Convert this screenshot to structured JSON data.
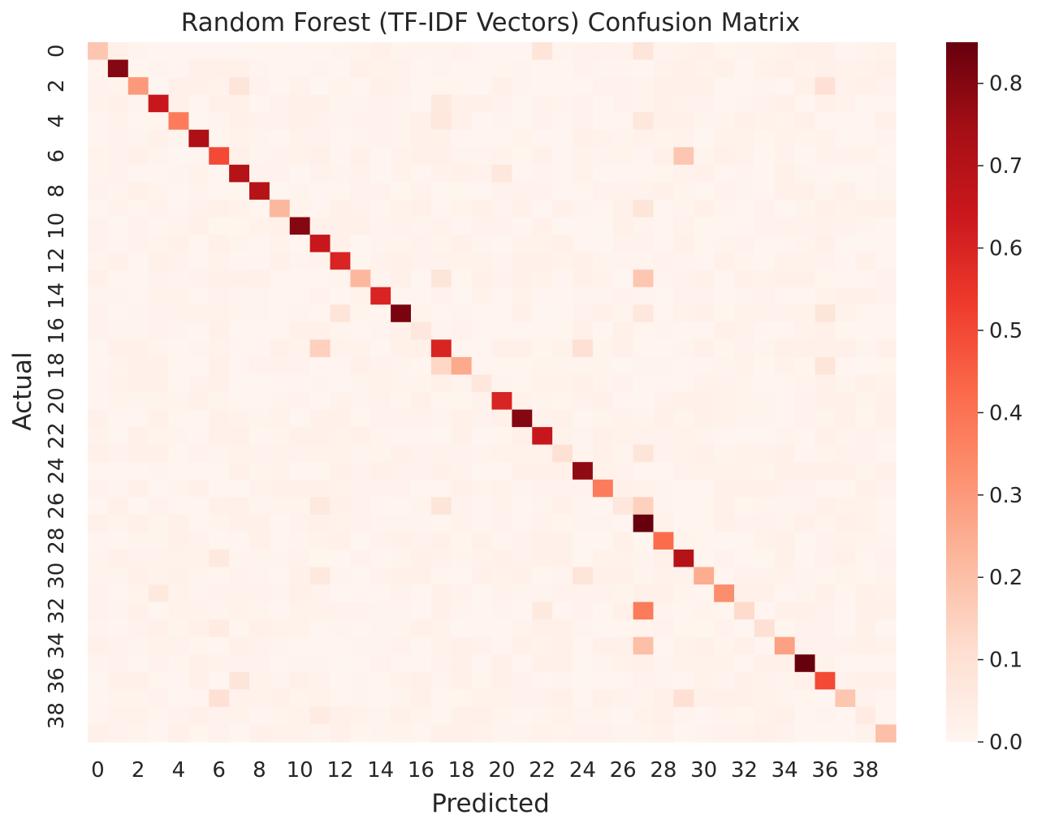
{
  "chart_data": {
    "type": "heatmap",
    "title": "Random Forest (TF-IDF Vectors) Confusion Matrix",
    "xlabel": "Predicted",
    "ylabel": "Actual",
    "n_classes": 40,
    "x_tick_labels": [
      "0",
      "2",
      "4",
      "6",
      "8",
      "10",
      "12",
      "14",
      "16",
      "18",
      "20",
      "22",
      "24",
      "26",
      "28",
      "30",
      "32",
      "34",
      "36",
      "38"
    ],
    "y_tick_labels": [
      "0",
      "2",
      "4",
      "6",
      "8",
      "10",
      "12",
      "14",
      "16",
      "18",
      "20",
      "22",
      "24",
      "26",
      "28",
      "30",
      "32",
      "34",
      "36",
      "38"
    ],
    "diagonal": [
      0.18,
      0.8,
      0.3,
      0.65,
      0.38,
      0.72,
      0.5,
      0.7,
      0.7,
      0.22,
      0.8,
      0.65,
      0.6,
      0.22,
      0.6,
      0.82,
      0.07,
      0.6,
      0.26,
      0.07,
      0.6,
      0.8,
      0.65,
      0.1,
      0.78,
      0.38,
      0.07,
      0.85,
      0.42,
      0.7,
      0.25,
      0.33,
      0.12,
      0.1,
      0.28,
      0.85,
      0.5,
      0.18,
      0.05,
      0.2
    ],
    "off_diagonal": [
      {
        "row": 0,
        "col": 22,
        "value": 0.08
      },
      {
        "row": 0,
        "col": 27,
        "value": 0.08
      },
      {
        "row": 2,
        "col": 7,
        "value": 0.08
      },
      {
        "row": 2,
        "col": 36,
        "value": 0.1
      },
      {
        "row": 3,
        "col": 17,
        "value": 0.06
      },
      {
        "row": 4,
        "col": 17,
        "value": 0.07
      },
      {
        "row": 4,
        "col": 27,
        "value": 0.07
      },
      {
        "row": 6,
        "col": 29,
        "value": 0.18
      },
      {
        "row": 7,
        "col": 20,
        "value": 0.07
      },
      {
        "row": 9,
        "col": 27,
        "value": 0.08
      },
      {
        "row": 13,
        "col": 27,
        "value": 0.18
      },
      {
        "row": 13,
        "col": 17,
        "value": 0.08
      },
      {
        "row": 15,
        "col": 12,
        "value": 0.08
      },
      {
        "row": 15,
        "col": 36,
        "value": 0.08
      },
      {
        "row": 15,
        "col": 27,
        "value": 0.07
      },
      {
        "row": 17,
        "col": 11,
        "value": 0.15
      },
      {
        "row": 17,
        "col": 24,
        "value": 0.1
      },
      {
        "row": 18,
        "col": 17,
        "value": 0.13
      },
      {
        "row": 18,
        "col": 36,
        "value": 0.08
      },
      {
        "row": 23,
        "col": 27,
        "value": 0.08
      },
      {
        "row": 26,
        "col": 27,
        "value": 0.15
      },
      {
        "row": 26,
        "col": 11,
        "value": 0.06
      },
      {
        "row": 26,
        "col": 17,
        "value": 0.08
      },
      {
        "row": 29,
        "col": 6,
        "value": 0.06
      },
      {
        "row": 30,
        "col": 24,
        "value": 0.08
      },
      {
        "row": 30,
        "col": 11,
        "value": 0.06
      },
      {
        "row": 31,
        "col": 3,
        "value": 0.06
      },
      {
        "row": 32,
        "col": 27,
        "value": 0.38
      },
      {
        "row": 32,
        "col": 22,
        "value": 0.06
      },
      {
        "row": 33,
        "col": 6,
        "value": 0.05
      },
      {
        "row": 34,
        "col": 27,
        "value": 0.2
      },
      {
        "row": 36,
        "col": 7,
        "value": 0.08
      },
      {
        "row": 37,
        "col": 6,
        "value": 0.1
      },
      {
        "row": 37,
        "col": 29,
        "value": 0.1
      },
      {
        "row": 38,
        "col": 11,
        "value": 0.05
      }
    ],
    "colormap": "Reds",
    "colorbar": {
      "vmin": 0.0,
      "vmax": 0.85,
      "ticks": [
        0.0,
        0.1,
        0.2,
        0.3,
        0.4,
        0.5,
        0.6,
        0.7,
        0.8
      ],
      "tick_labels": [
        "0.0",
        "0.1",
        "0.2",
        "0.3",
        "0.4",
        "0.5",
        "0.6",
        "0.7",
        "0.8"
      ]
    },
    "grid": false,
    "legend": "colorbar-right"
  }
}
